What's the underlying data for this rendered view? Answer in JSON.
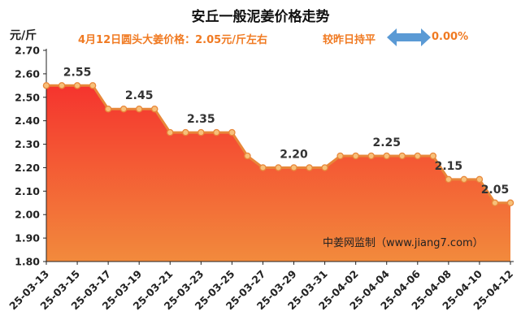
{
  "title": "安丘一般泥姜价格走势",
  "unit_label": "元/斤",
  "subtitle": {
    "price_text": "4月12日圆头大姜价格：2.05元/斤左右",
    "change_text": "较昨日持平",
    "change_icon": "double-arrow-icon",
    "change_pct": "0.00%"
  },
  "watermark": "中姜网监制（www.jiang7.com）",
  "colors": {
    "area_top": "#f5342e",
    "area_bottom": "#f28a3c",
    "line": "#e8873a",
    "marker_fill": "#f7c07a",
    "arrow": "#5a9ad5",
    "subtitle": "#f07a22"
  },
  "chart_data": {
    "type": "area",
    "title": "安丘一般泥姜价格走势",
    "ylabel": "元/斤",
    "xlabel": "",
    "ylim": [
      1.8,
      2.7
    ],
    "yticks": [
      "1.80",
      "1.90",
      "2.00",
      "2.10",
      "2.20",
      "2.30",
      "2.40",
      "2.50",
      "2.60",
      "2.70"
    ],
    "xtick_labels": [
      "25-03-13",
      "25-03-15",
      "25-03-17",
      "25-03-19",
      "25-03-21",
      "25-03-23",
      "25-03-25",
      "25-03-27",
      "25-03-29",
      "25-03-31",
      "25-04-02",
      "25-04-04",
      "25-04-06",
      "25-04-08",
      "25-04-10",
      "25-04-12"
    ],
    "x": [
      "25-03-13",
      "25-03-14",
      "25-03-15",
      "25-03-16",
      "25-03-17",
      "25-03-18",
      "25-03-19",
      "25-03-20",
      "25-03-21",
      "25-03-22",
      "25-03-23",
      "25-03-24",
      "25-03-25",
      "25-03-26",
      "25-03-27",
      "25-03-28",
      "25-03-29",
      "25-03-30",
      "25-03-31",
      "25-04-01",
      "25-04-02",
      "25-04-03",
      "25-04-04",
      "25-04-05",
      "25-04-06",
      "25-04-07",
      "25-04-08",
      "25-04-09",
      "25-04-10",
      "25-04-11",
      "25-04-12"
    ],
    "values": [
      2.55,
      2.55,
      2.55,
      2.55,
      2.45,
      2.45,
      2.45,
      2.45,
      2.35,
      2.35,
      2.35,
      2.35,
      2.35,
      2.25,
      2.2,
      2.2,
      2.2,
      2.2,
      2.2,
      2.25,
      2.25,
      2.25,
      2.25,
      2.25,
      2.25,
      2.25,
      2.15,
      2.15,
      2.15,
      2.05,
      2.05
    ],
    "data_labels": [
      {
        "x": "25-03-15",
        "text": "2.55"
      },
      {
        "x": "25-03-19",
        "text": "2.45"
      },
      {
        "x": "25-03-23",
        "text": "2.35"
      },
      {
        "x": "25-03-29",
        "text": "2.20"
      },
      {
        "x": "25-04-04",
        "text": "2.25"
      },
      {
        "x": "25-04-08",
        "text": "2.15"
      },
      {
        "x": "25-04-11",
        "text": "2.05"
      }
    ],
    "grid": false,
    "legend": "none"
  }
}
